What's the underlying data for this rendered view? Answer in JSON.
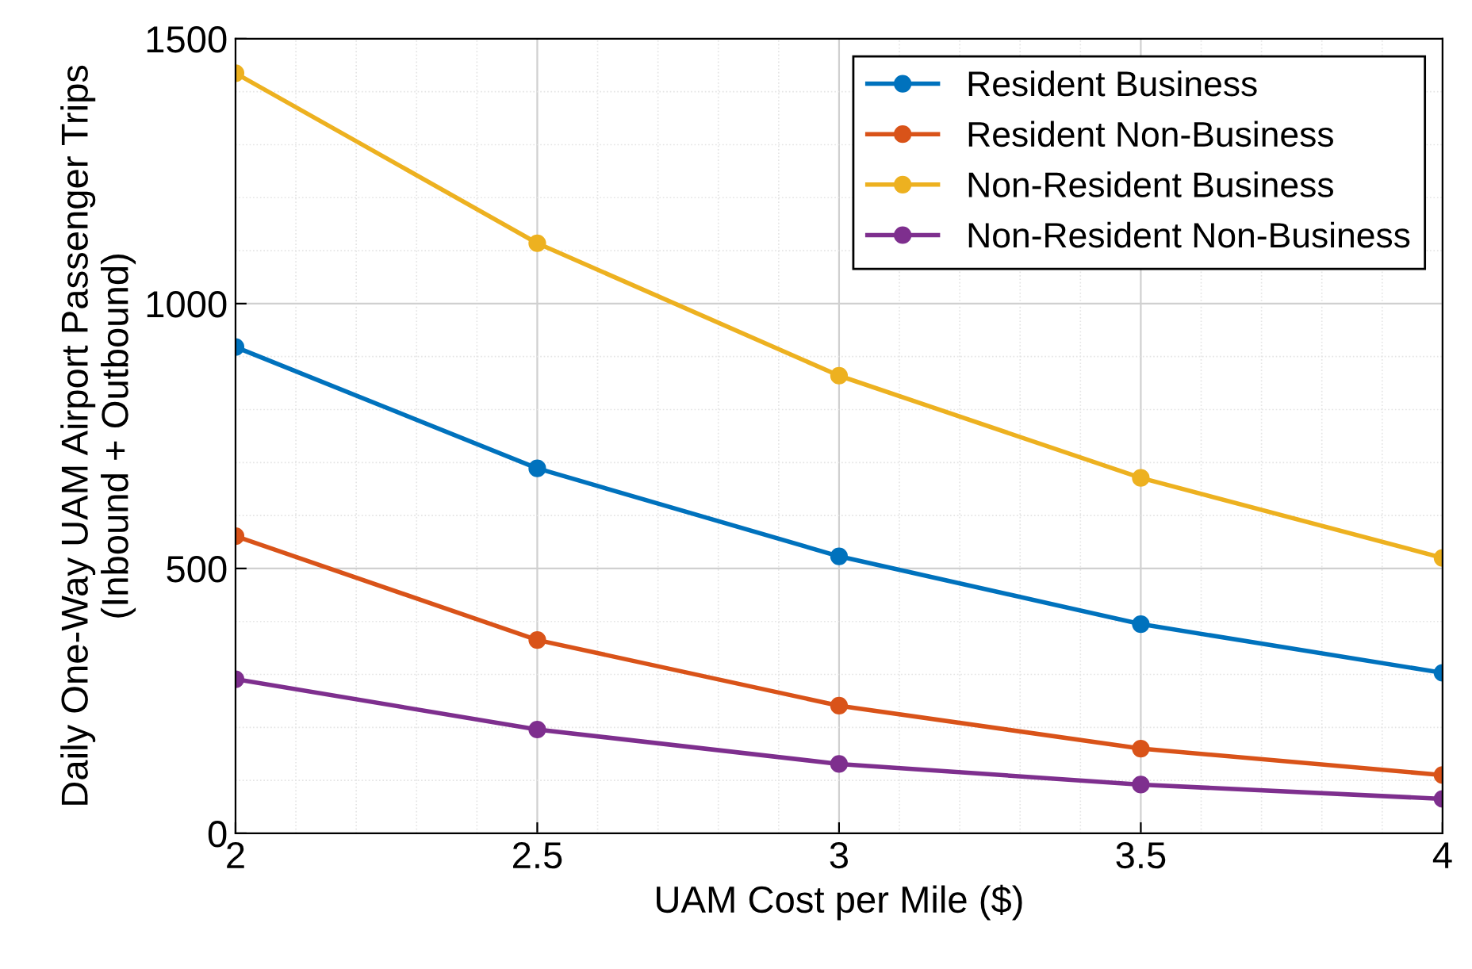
{
  "chart_data": {
    "type": "line",
    "xlabel": "UAM Cost per Mile ($)",
    "ylabel": "Daily One-Way UAM Airport Passenger Trips\n(Inbound + Outbound)",
    "x": [
      2,
      2.5,
      3,
      3.5,
      4
    ],
    "series": [
      {
        "name": "Resident Business",
        "color": "#0072bd",
        "values": [
          918,
          689,
          523,
          395,
          303
        ]
      },
      {
        "name": "Resident Non-Business",
        "color": "#d95319",
        "values": [
          561,
          365,
          241,
          160,
          110
        ]
      },
      {
        "name": "Non-Resident Business",
        "color": "#edb120",
        "values": [
          1435,
          1114,
          864,
          671,
          520
        ]
      },
      {
        "name": "Non-Resident Non-Business",
        "color": "#7e2f8e",
        "values": [
          291,
          196,
          131,
          92,
          65
        ]
      }
    ],
    "xlim": [
      2,
      4
    ],
    "xticks": [
      2,
      2.5,
      3,
      3.5,
      4
    ],
    "ylim": [
      0,
      1500
    ],
    "yticks": [
      0,
      500,
      1000,
      1500
    ],
    "grid": true,
    "legend": "top right",
    "marker": "circle",
    "line_style": "solid"
  }
}
